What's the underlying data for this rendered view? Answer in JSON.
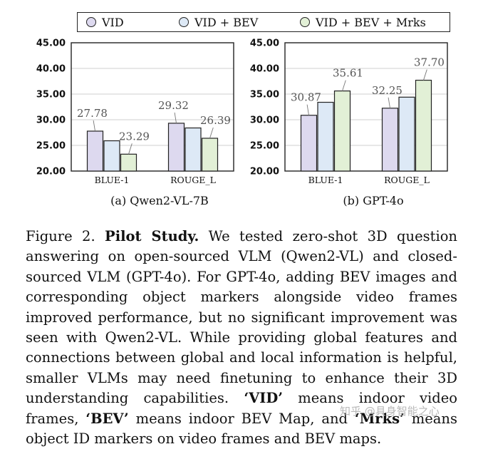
{
  "legend": [
    {
      "label": "VID",
      "color": "#ddd9ef"
    },
    {
      "label": "VID + BEV",
      "color": "#dde9f6"
    },
    {
      "label": "VID + BEV + Mrks",
      "color": "#e2f0d6"
    }
  ],
  "chart_data": [
    {
      "type": "bar",
      "title": "(a) Qwen2-VL-7B",
      "categories": [
        "BLUE-1",
        "ROUGE_L"
      ],
      "series": [
        {
          "name": "VID",
          "values": [
            27.78,
            29.32
          ]
        },
        {
          "name": "VID + BEV",
          "values": [
            25.9,
            28.4
          ]
        },
        {
          "name": "VID + BEV + Mrks",
          "values": [
            23.29,
            26.39
          ]
        }
      ],
      "data_labels": [
        {
          "category": 0,
          "series": 0,
          "text": "27.78"
        },
        {
          "category": 0,
          "series": 2,
          "text": "23.29"
        },
        {
          "category": 1,
          "series": 0,
          "text": "29.32"
        },
        {
          "category": 1,
          "series": 2,
          "text": "26.39"
        }
      ],
      "yticks": [
        "20.00",
        "25.00",
        "30.00",
        "35.00",
        "40.00",
        "45.00"
      ],
      "ylim": [
        20,
        45
      ],
      "xlabel": "",
      "ylabel": "",
      "grid": true
    },
    {
      "type": "bar",
      "title": "(b) GPT-4o",
      "categories": [
        "BLUE-1",
        "ROUGE_L"
      ],
      "series": [
        {
          "name": "VID",
          "values": [
            30.87,
            32.25
          ]
        },
        {
          "name": "VID + BEV",
          "values": [
            33.4,
            34.4
          ]
        },
        {
          "name": "VID + BEV + Mrks",
          "values": [
            35.61,
            37.7
          ]
        }
      ],
      "data_labels": [
        {
          "category": 0,
          "series": 0,
          "text": "30.87"
        },
        {
          "category": 0,
          "series": 2,
          "text": "35.61"
        },
        {
          "category": 1,
          "series": 0,
          "text": "32.25"
        },
        {
          "category": 1,
          "series": 2,
          "text": "37.70"
        }
      ],
      "yticks": [
        "20.00",
        "25.00",
        "30.00",
        "35.00",
        "40.00",
        "45.00"
      ],
      "ylim": [
        20,
        45
      ],
      "xlabel": "",
      "ylabel": "",
      "grid": true
    }
  ],
  "caption": {
    "label": "Figure 2.",
    "heading": "Pilot Study.",
    "part1": "We tested zero-shot 3D question answering on open-sourced VLM (Qwen2-VL) and closed-sourced VLM (GPT-4o). For GPT-4o, adding BEV images and corresponding object markers alongside video frames improved performance, but no significant improvement was seen with Qwen2-VL. While providing global features and connections between global and local information is helpful, smaller VLMs may need finetuning to enhance their 3D understanding capabilities.",
    "term_vid": "‘VID’",
    "def_vid": "means indoor video frames,",
    "term_bev": "‘BEV’",
    "def_bev": "means indoor BEV Map, and",
    "term_mrks": "‘Mrks’",
    "def_mrks": "means object ID markers on video frames and BEV maps."
  },
  "watermark": "知乎 @具身智能之心"
}
